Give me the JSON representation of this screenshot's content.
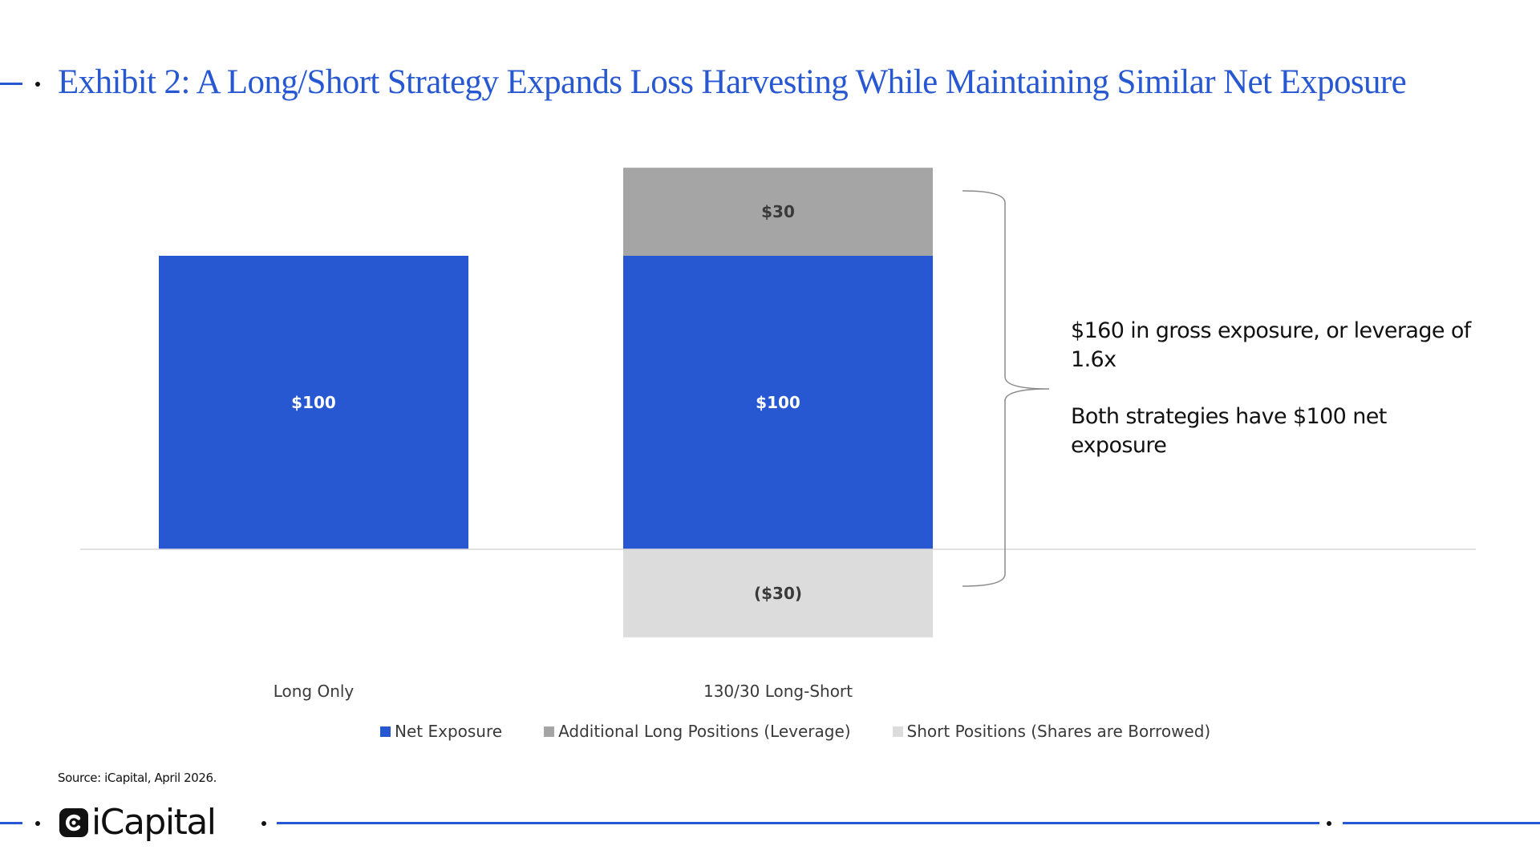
{
  "title": "Exhibit 2: A Long/Short Strategy Expands Loss Harvesting While Maintaining Similar Net Exposure",
  "chart_data": {
    "type": "bar",
    "stacked": true,
    "categories": [
      "Long Only",
      "130/30 Long-Short"
    ],
    "series": [
      {
        "name": "Net Exposure",
        "values": [
          100,
          100
        ],
        "labels": [
          "$100",
          "$100"
        ],
        "color": "#2758d2",
        "label_color": "#ffffff"
      },
      {
        "name": "Additional Long Positions (Leverage)",
        "values": [
          0,
          30
        ],
        "labels": [
          "",
          "$30"
        ],
        "color": "#a5a5a5",
        "label_color": "#3a3a3a"
      },
      {
        "name": "Short Positions (Shares are Borrowed)",
        "values": [
          0,
          -30
        ],
        "labels": [
          "",
          "($30)"
        ],
        "color": "#dcdcdc",
        "label_color": "#3a3a3a"
      }
    ],
    "ylim": [
      -30,
      130
    ],
    "grid": false,
    "legend": "bottom"
  },
  "annotation": {
    "gross": "$160 in gross exposure, or leverage of 1.6x",
    "net": "Both strategies have $100 net exposure"
  },
  "source": "Source: iCapital, April 2026.",
  "logo": {
    "text": "iCapital",
    "mark_icon": "icapital-logo-icon"
  },
  "colors": {
    "accent": "#2758d2",
    "text": "#111111"
  }
}
